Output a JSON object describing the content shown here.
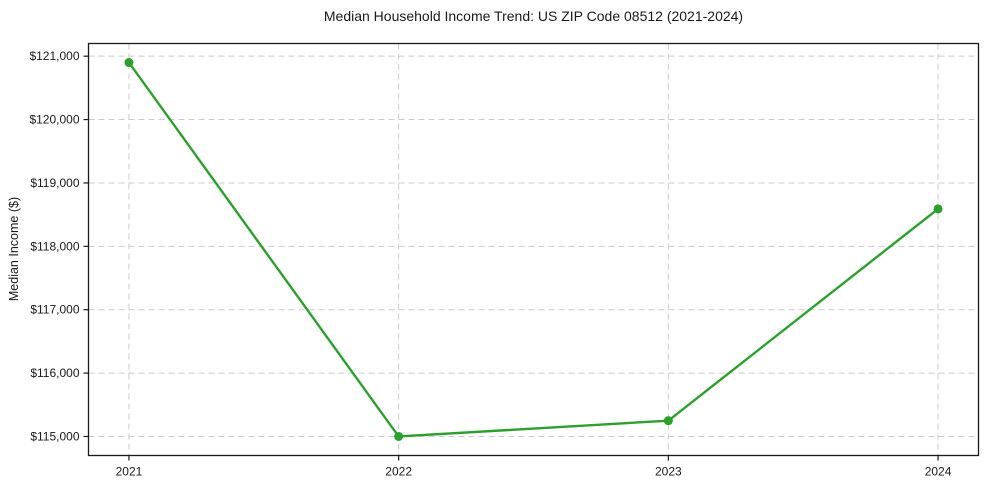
{
  "chart_data": {
    "type": "line",
    "title": "Median Household Income Trend: US ZIP Code 08512 (2021-2024)",
    "xlabel": "",
    "ylabel": "Median Income ($)",
    "x": [
      2021,
      2022,
      2023,
      2024
    ],
    "x_tick_labels": [
      "2021",
      "2022",
      "2023",
      "2024"
    ],
    "series": [
      {
        "name": "Median Household Income",
        "values": [
          120900,
          115000,
          115250,
          118590
        ],
        "color": "#2ca02c",
        "marker": "circle",
        "line_width": 2.4,
        "marker_radius": 4.5
      }
    ],
    "y_ticks": [
      115000,
      116000,
      117000,
      118000,
      119000,
      120000,
      121000
    ],
    "y_tick_labels": [
      "$115,000",
      "$116,000",
      "$117,000",
      "$118,000",
      "$119,000",
      "$120,000",
      "$121,000"
    ],
    "xlim": [
      2020.85,
      2024.15
    ],
    "ylim": [
      114700,
      121200
    ],
    "grid": "both",
    "grid_style": "dashed",
    "legend": "none",
    "colors": {
      "line": "#2ca02c",
      "grid": "#cccccc",
      "axis": "#1a1a1a",
      "text": "#1a1a1a",
      "background": "#ffffff"
    }
  }
}
